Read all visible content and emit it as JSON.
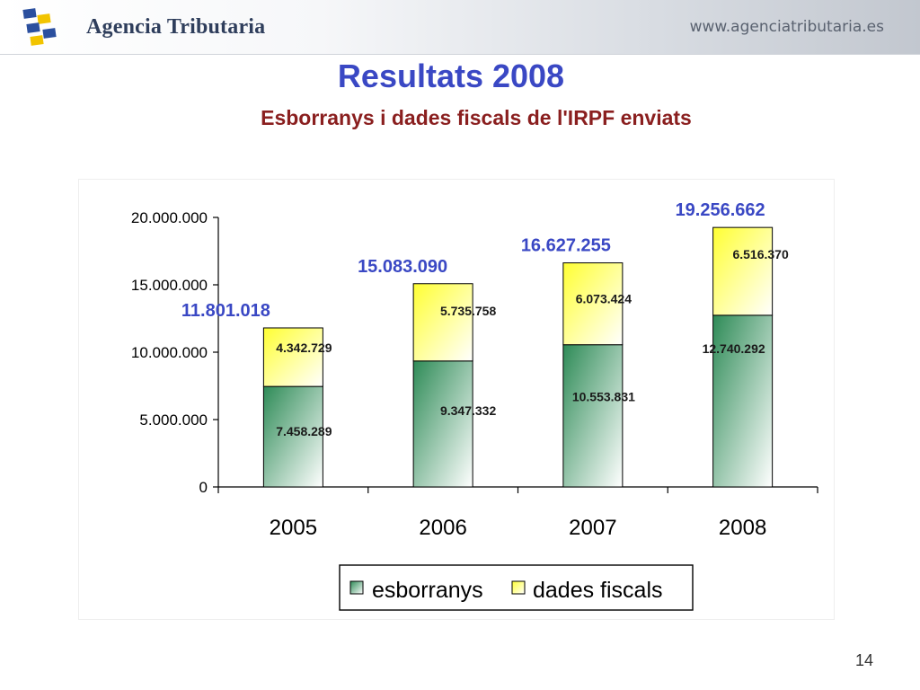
{
  "header": {
    "brand": "Agencia Tributaria",
    "site": "www.agenciatributaria.es"
  },
  "slide": {
    "title": "Resultats 2008",
    "subtitle": "Esborranys i dades fiscals de l'IRPF enviats",
    "page_number": "14"
  },
  "colors": {
    "accent_title": "#3a48c4",
    "accent_subtitle": "#8a1f1f",
    "series_esborranys": "#2e8b57",
    "series_dades_fiscals": "#ffff33",
    "total_labels": "#3a48c4"
  },
  "chart_data": {
    "type": "bar",
    "stacked": true,
    "categories": [
      "2005",
      "2006",
      "2007",
      "2008"
    ],
    "series": [
      {
        "name": "esborranys",
        "values": [
          7458289,
          9347332,
          10553831,
          12740292
        ],
        "labels": [
          "7.458.289",
          "9.347.332",
          "10.553.831",
          "12.740.292"
        ]
      },
      {
        "name": "dades fiscals",
        "values": [
          4342729,
          5735758,
          6073424,
          6516370
        ],
        "labels": [
          "4.342.729",
          "5.735.758",
          "6.073.424",
          "6.516.370"
        ]
      }
    ],
    "totals": [
      11801018,
      15083090,
      16627255,
      19256662
    ],
    "total_labels": [
      "11.801.018",
      "15.083.090",
      "16.627.255",
      "19.256.662"
    ],
    "ylim": [
      0,
      20000000
    ],
    "yticks": [
      0,
      5000000,
      10000000,
      15000000,
      20000000
    ],
    "ytick_labels": [
      "0",
      "5.000.000",
      "10.000.000",
      "15.000.000",
      "20.000.000"
    ],
    "legend": "bottom",
    "grid": false
  }
}
